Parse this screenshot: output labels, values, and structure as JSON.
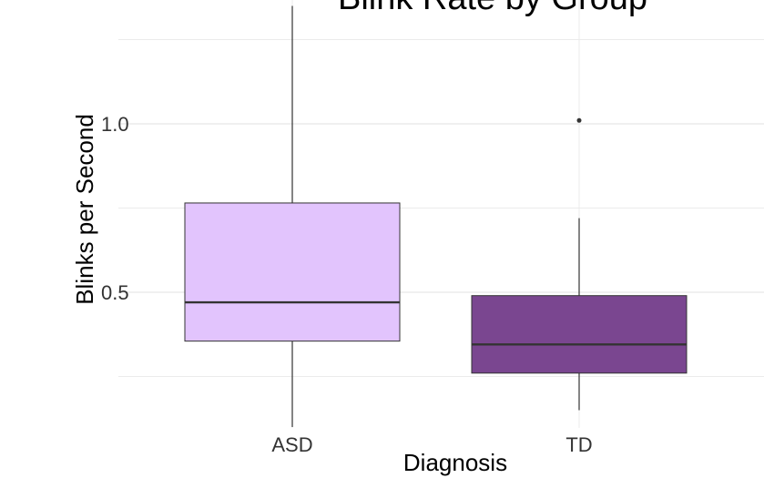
{
  "chart_data": {
    "type": "boxplot",
    "title": "Blink Rate by Group",
    "xlabel": "Diagnosis",
    "ylabel": "Blinks per Second",
    "categories": [
      "ASD",
      "TD"
    ],
    "yticks": [
      0.5,
      1.0
    ],
    "ytick_labels": [
      "0.5",
      "1.0"
    ],
    "grid": true,
    "boxes": [
      {
        "category": "ASD",
        "whisker_low": 0.1,
        "q1": 0.355,
        "median": 0.47,
        "q3": 0.765,
        "whisker_high": 1.35,
        "outliers": [],
        "fill": "#e2c4fd"
      },
      {
        "category": "TD",
        "whisker_low": 0.15,
        "q1": 0.26,
        "median": 0.345,
        "q3": 0.49,
        "whisker_high": 0.72,
        "outliers": [
          1.01
        ],
        "fill": "#7a4690"
      }
    ]
  },
  "colors": {
    "grid": "#ebebeb",
    "box_border": "#333333",
    "whisker": "#333333"
  }
}
